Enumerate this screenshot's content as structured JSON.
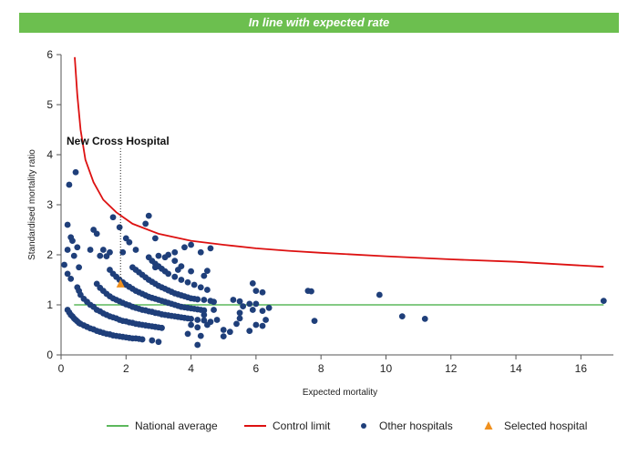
{
  "header": {
    "banner_label": "In line with expected rate"
  },
  "chart_data": {
    "type": "scatter",
    "title": "",
    "xlabel": "Expected mortality",
    "ylabel": "Standardised mortality ratio",
    "xlim": [
      0,
      17
    ],
    "ylim": [
      0,
      6
    ],
    "x_ticks": [
      0,
      2,
      4,
      6,
      8,
      10,
      12,
      14,
      16
    ],
    "y_ticks": [
      0,
      1,
      2,
      3,
      4,
      5,
      6
    ],
    "grid": false,
    "legend_position": "bottom",
    "colors": {
      "national_average": "#5cb85c",
      "control_limit": "#dd1111",
      "other_hospitals": "#1f3f7a",
      "selected_hospital": "#f0901e"
    },
    "national_average": {
      "name": "National average",
      "y": 1.0,
      "x_range": [
        0.4,
        16.7
      ]
    },
    "control_limit": {
      "name": "Control limit",
      "points": [
        [
          0.42,
          5.95
        ],
        [
          0.5,
          5.2
        ],
        [
          0.6,
          4.5
        ],
        [
          0.75,
          3.9
        ],
        [
          1.0,
          3.45
        ],
        [
          1.3,
          3.1
        ],
        [
          1.7,
          2.85
        ],
        [
          2.2,
          2.62
        ],
        [
          3.0,
          2.42
        ],
        [
          4.0,
          2.28
        ],
        [
          5.0,
          2.2
        ],
        [
          6.0,
          2.13
        ],
        [
          7.0,
          2.08
        ],
        [
          8.0,
          2.04
        ],
        [
          10.0,
          1.97
        ],
        [
          12.0,
          1.91
        ],
        [
          14.0,
          1.86
        ],
        [
          16.7,
          1.76
        ]
      ]
    },
    "selected_hospital": {
      "name": "Selected hospital",
      "label": "New Cross Hospital",
      "x": 1.83,
      "y": 1.42
    },
    "other_hospitals": {
      "name": "Other hospitals",
      "points": [
        [
          0.2,
          0.9
        ],
        [
          0.25,
          0.85
        ],
        [
          0.3,
          0.8
        ],
        [
          0.35,
          0.77
        ],
        [
          0.4,
          0.73
        ],
        [
          0.45,
          0.7
        ],
        [
          0.5,
          0.67
        ],
        [
          0.55,
          0.64
        ],
        [
          0.6,
          0.62
        ],
        [
          0.7,
          0.59
        ],
        [
          0.8,
          0.56
        ],
        [
          0.9,
          0.53
        ],
        [
          1.0,
          0.51
        ],
        [
          1.1,
          0.48
        ],
        [
          1.2,
          0.46
        ],
        [
          1.3,
          0.44
        ],
        [
          1.4,
          0.42
        ],
        [
          1.5,
          0.41
        ],
        [
          1.6,
          0.39
        ],
        [
          1.7,
          0.38
        ],
        [
          1.8,
          0.37
        ],
        [
          1.9,
          0.36
        ],
        [
          2.0,
          0.35
        ],
        [
          2.1,
          0.34
        ],
        [
          2.2,
          0.33
        ],
        [
          2.3,
          0.33
        ],
        [
          2.4,
          0.32
        ],
        [
          2.5,
          0.31
        ],
        [
          2.8,
          0.29
        ],
        [
          3.0,
          0.26
        ],
        [
          0.5,
          1.35
        ],
        [
          0.55,
          1.28
        ],
        [
          0.6,
          1.2
        ],
        [
          0.7,
          1.12
        ],
        [
          0.8,
          1.06
        ],
        [
          0.9,
          1.0
        ],
        [
          1.0,
          0.96
        ],
        [
          1.1,
          0.9
        ],
        [
          1.2,
          0.87
        ],
        [
          1.3,
          0.83
        ],
        [
          1.4,
          0.8
        ],
        [
          1.5,
          0.77
        ],
        [
          1.6,
          0.75
        ],
        [
          1.7,
          0.73
        ],
        [
          1.8,
          0.7
        ],
        [
          1.9,
          0.68
        ],
        [
          2.0,
          0.67
        ],
        [
          2.1,
          0.65
        ],
        [
          2.2,
          0.64
        ],
        [
          2.3,
          0.62
        ],
        [
          2.4,
          0.61
        ],
        [
          2.5,
          0.6
        ],
        [
          2.6,
          0.59
        ],
        [
          2.7,
          0.58
        ],
        [
          2.8,
          0.57
        ],
        [
          2.9,
          0.56
        ],
        [
          3.0,
          0.55
        ],
        [
          3.1,
          0.54
        ],
        [
          1.1,
          1.42
        ],
        [
          1.2,
          1.34
        ],
        [
          1.3,
          1.28
        ],
        [
          1.4,
          1.22
        ],
        [
          1.5,
          1.17
        ],
        [
          1.6,
          1.13
        ],
        [
          1.7,
          1.1
        ],
        [
          1.8,
          1.07
        ],
        [
          1.9,
          1.04
        ],
        [
          2.0,
          1.01
        ],
        [
          2.1,
          0.99
        ],
        [
          2.2,
          0.96
        ],
        [
          2.3,
          0.94
        ],
        [
          2.4,
          0.92
        ],
        [
          2.5,
          0.9
        ],
        [
          2.6,
          0.89
        ],
        [
          2.7,
          0.87
        ],
        [
          2.8,
          0.86
        ],
        [
          2.9,
          0.84
        ],
        [
          3.0,
          0.83
        ],
        [
          3.1,
          0.81
        ],
        [
          3.2,
          0.8
        ],
        [
          3.3,
          0.79
        ],
        [
          3.4,
          0.78
        ],
        [
          3.5,
          0.77
        ],
        [
          3.6,
          0.76
        ],
        [
          3.7,
          0.75
        ],
        [
          3.8,
          0.74
        ],
        [
          3.9,
          0.73
        ],
        [
          4.0,
          0.72
        ],
        [
          4.2,
          0.7
        ],
        [
          4.4,
          0.69
        ],
        [
          4.6,
          0.66
        ],
        [
          1.6,
          1.62
        ],
        [
          1.7,
          1.56
        ],
        [
          1.8,
          1.5
        ],
        [
          1.9,
          1.45
        ],
        [
          2.0,
          1.4
        ],
        [
          2.1,
          1.36
        ],
        [
          2.2,
          1.32
        ],
        [
          2.3,
          1.28
        ],
        [
          2.4,
          1.25
        ],
        [
          2.5,
          1.22
        ],
        [
          2.6,
          1.19
        ],
        [
          2.7,
          1.16
        ],
        [
          2.8,
          1.14
        ],
        [
          2.9,
          1.12
        ],
        [
          3.0,
          1.1
        ],
        [
          3.1,
          1.08
        ],
        [
          3.2,
          1.06
        ],
        [
          3.3,
          1.04
        ],
        [
          3.4,
          1.02
        ],
        [
          3.5,
          1.0
        ],
        [
          3.6,
          0.98
        ],
        [
          3.7,
          0.96
        ],
        [
          3.8,
          0.95
        ],
        [
          3.9,
          0.94
        ],
        [
          4.0,
          0.93
        ],
        [
          4.1,
          0.92
        ],
        [
          4.2,
          0.91
        ],
        [
          4.3,
          0.9
        ],
        [
          4.4,
          0.89
        ],
        [
          2.2,
          1.75
        ],
        [
          2.3,
          1.7
        ],
        [
          2.4,
          1.65
        ],
        [
          2.5,
          1.6
        ],
        [
          2.6,
          1.55
        ],
        [
          2.7,
          1.5
        ],
        [
          2.8,
          1.46
        ],
        [
          2.9,
          1.42
        ],
        [
          3.0,
          1.38
        ],
        [
          3.1,
          1.35
        ],
        [
          3.2,
          1.32
        ],
        [
          3.3,
          1.29
        ],
        [
          3.4,
          1.26
        ],
        [
          3.5,
          1.23
        ],
        [
          3.6,
          1.21
        ],
        [
          3.7,
          1.19
        ],
        [
          3.8,
          1.17
        ],
        [
          3.9,
          1.15
        ],
        [
          4.0,
          1.13
        ],
        [
          4.1,
          1.12
        ],
        [
          4.2,
          1.11
        ],
        [
          4.4,
          1.1
        ],
        [
          4.6,
          1.08
        ],
        [
          2.7,
          1.95
        ],
        [
          2.8,
          1.88
        ],
        [
          2.9,
          1.82
        ],
        [
          3.0,
          1.77
        ],
        [
          3.1,
          1.72
        ],
        [
          3.2,
          1.67
        ],
        [
          3.3,
          1.62
        ],
        [
          3.5,
          1.56
        ],
        [
          3.7,
          1.5
        ],
        [
          3.9,
          1.45
        ],
        [
          4.1,
          1.4
        ],
        [
          4.3,
          1.35
        ],
        [
          4.5,
          1.3
        ],
        [
          3.3,
          2.0
        ],
        [
          3.5,
          1.88
        ],
        [
          3.7,
          1.77
        ],
        [
          4.0,
          1.67
        ],
        [
          4.4,
          1.58
        ],
        [
          4.5,
          1.68
        ],
        [
          4.7,
          1.06
        ],
        [
          4.4,
          0.8
        ],
        [
          4.5,
          0.6
        ],
        [
          4.2,
          0.55
        ],
        [
          3.9,
          0.42
        ],
        [
          4.3,
          0.38
        ],
        [
          4.2,
          0.2
        ],
        [
          4.0,
          0.6
        ],
        [
          4.7,
          0.9
        ],
        [
          4.8,
          0.7
        ],
        [
          5.0,
          0.5
        ],
        [
          5.2,
          0.46
        ],
        [
          5.4,
          0.62
        ],
        [
          5.5,
          0.73
        ],
        [
          5.8,
          0.48
        ],
        [
          6.0,
          0.6
        ],
        [
          6.2,
          0.58
        ],
        [
          6.3,
          0.7
        ],
        [
          5.3,
          1.1
        ],
        [
          5.5,
          1.07
        ],
        [
          5.6,
          0.97
        ],
        [
          5.8,
          1.02
        ],
        [
          5.9,
          0.9
        ],
        [
          6.0,
          1.02
        ],
        [
          6.2,
          0.88
        ],
        [
          6.4,
          0.94
        ],
        [
          5.9,
          1.43
        ],
        [
          6.0,
          1.28
        ],
        [
          6.2,
          1.25
        ],
        [
          5.5,
          0.84
        ],
        [
          5.0,
          0.37
        ],
        [
          7.6,
          1.28
        ],
        [
          7.7,
          1.27
        ],
        [
          7.8,
          0.68
        ],
        [
          9.8,
          1.2
        ],
        [
          10.5,
          0.77
        ],
        [
          11.2,
          0.72
        ],
        [
          16.7,
          1.08
        ],
        [
          0.1,
          1.8
        ],
        [
          0.2,
          1.62
        ],
        [
          0.3,
          1.52
        ],
        [
          0.4,
          1.98
        ],
        [
          0.2,
          2.1
        ],
        [
          0.3,
          2.35
        ],
        [
          0.35,
          2.28
        ],
        [
          0.55,
          1.75
        ],
        [
          0.5,
          2.15
        ],
        [
          0.2,
          2.6
        ],
        [
          0.25,
          3.4
        ],
        [
          0.45,
          3.65
        ],
        [
          0.9,
          2.1
        ],
        [
          1.0,
          2.5
        ],
        [
          1.1,
          2.42
        ],
        [
          1.2,
          1.98
        ],
        [
          1.3,
          2.1
        ],
        [
          1.4,
          1.97
        ],
        [
          1.5,
          1.7
        ],
        [
          1.5,
          2.05
        ],
        [
          1.6,
          2.75
        ],
        [
          1.8,
          2.55
        ],
        [
          1.9,
          2.05
        ],
        [
          2.0,
          2.33
        ],
        [
          2.1,
          2.25
        ],
        [
          2.3,
          2.1
        ],
        [
          2.6,
          2.62
        ],
        [
          2.7,
          2.78
        ],
        [
          2.9,
          2.33
        ],
        [
          3.0,
          1.98
        ],
        [
          3.2,
          1.95
        ],
        [
          3.5,
          2.05
        ],
        [
          3.8,
          2.15
        ],
        [
          4.0,
          2.2
        ],
        [
          4.3,
          2.05
        ],
        [
          4.6,
          2.13
        ],
        [
          3.6,
          1.7
        ],
        [
          2.9,
          1.75
        ]
      ]
    }
  },
  "legend": {
    "items": [
      {
        "label": "National average",
        "symbol": "line",
        "color": "#5cb85c"
      },
      {
        "label": "Control limit",
        "symbol": "line",
        "color": "#dd1111"
      },
      {
        "label": "Other hospitals",
        "symbol": "circle",
        "color": "#1f3f7a"
      },
      {
        "label": "Selected hospital",
        "symbol": "triangle",
        "color": "#f0901e"
      }
    ]
  }
}
